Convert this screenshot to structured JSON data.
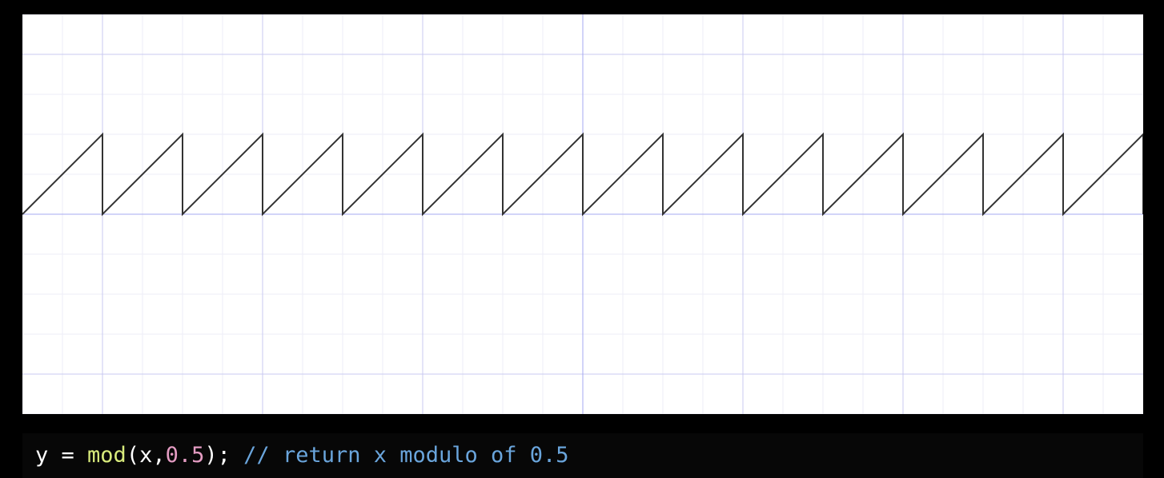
{
  "chart_data": {
    "type": "line",
    "title": "",
    "xlabel": "",
    "ylabel": "",
    "function": "mod(x, 0.5)",
    "period": 0.5,
    "xlim": [
      -3.5,
      3.5
    ],
    "ylim": [
      -1.25,
      1.25
    ],
    "grid": true,
    "major_grid_step": 1,
    "minor_grid_step": 0.25,
    "colors": {
      "curve": "#333333",
      "axis": "#a6a8f0",
      "major_grid": "#c8c9f0",
      "minor_grid": "#ededf7",
      "background": "#ffffff"
    },
    "series": [
      {
        "x": [
          -3.5,
          -3.0,
          -3.0,
          -2.5,
          -2.5,
          -2.0,
          -2.0,
          -1.5,
          -1.5,
          -1.0,
          -1.0,
          -0.5,
          -0.5,
          0.0,
          0.0,
          0.5,
          0.5,
          1.0,
          1.0,
          1.5,
          1.5,
          2.0,
          2.0,
          2.5,
          2.5,
          3.0,
          3.0,
          3.5,
          3.5
        ],
        "y": [
          0.0,
          0.5,
          0.0,
          0.5,
          0.0,
          0.5,
          0.0,
          0.5,
          0.0,
          0.5,
          0.0,
          0.5,
          0.0,
          0.5,
          0.0,
          0.5,
          0.0,
          0.5,
          0.0,
          0.5,
          0.0,
          0.5,
          0.0,
          0.5,
          0.0,
          0.5,
          0.0,
          0.5,
          0.0
        ]
      }
    ]
  },
  "code": {
    "var": "y",
    "assign": " = ",
    "fn": "mod",
    "open": "(x,",
    "arg": "0.5",
    "close": "); ",
    "comment": "// return x modulo of 0.5"
  }
}
